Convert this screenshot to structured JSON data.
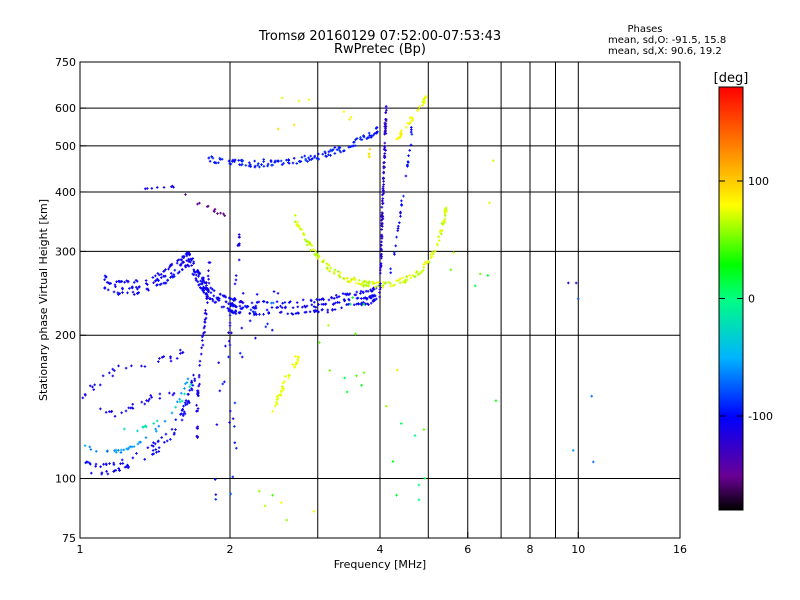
{
  "title": {
    "line1": "Tromsø 20160129 07:52:00-07:53:43",
    "line2": "RwPretec (Bp)"
  },
  "stats": {
    "heading": "Phases",
    "o_line": "mean, sd,O: -91.5, 15.8",
    "x_line": "mean, sd,X:  90.6, 19.2"
  },
  "colorbar": {
    "label": "[deg]",
    "ticks": [
      {
        "value": 100,
        "label": "100"
      },
      {
        "value": 0,
        "label": "0"
      },
      {
        "value": -100,
        "label": "-100"
      }
    ],
    "range": [
      -180,
      180
    ]
  },
  "chart_data": {
    "type": "scatter",
    "xlabel": "Frequency [MHz]",
    "ylabel": "Stationary phase Virtual Height [km]",
    "xscale": "log",
    "yscale": "log",
    "xlim": [
      1,
      16
    ],
    "ylim": [
      75,
      750
    ],
    "x_ticks": [
      {
        "value": 1,
        "label": "1"
      },
      {
        "value": 2,
        "label": "2"
      },
      {
        "value": 4,
        "label": "4"
      },
      {
        "value": 6,
        "label": "6"
      },
      {
        "value": 8,
        "label": "8"
      },
      {
        "value": 10,
        "label": "10"
      },
      {
        "value": 16,
        "label": "16"
      }
    ],
    "x_grid": [
      1,
      2,
      3,
      4,
      5,
      6,
      7,
      8,
      9,
      10,
      16
    ],
    "y_ticks": [
      {
        "value": 75,
        "label": "75"
      },
      {
        "value": 100,
        "label": "100"
      },
      {
        "value": 200,
        "label": "200"
      },
      {
        "value": 300,
        "label": "300"
      },
      {
        "value": 400,
        "label": "400"
      },
      {
        "value": 500,
        "label": "500"
      },
      {
        "value": 600,
        "label": "600"
      },
      {
        "value": 750,
        "label": "750"
      }
    ],
    "y_grid": [
      100,
      200,
      300,
      400,
      500,
      600
    ],
    "traces": [
      {
        "kind": "curve",
        "pts": [
          [
            1.12,
            260
          ],
          [
            1.2,
            252
          ],
          [
            1.3,
            252
          ],
          [
            1.4,
            258
          ],
          [
            1.5,
            268
          ],
          [
            1.6,
            282
          ],
          [
            1.65,
            290
          ],
          [
            1.7,
            272
          ],
          [
            1.75,
            258
          ],
          [
            1.8,
            248
          ],
          [
            1.9,
            238
          ],
          [
            2.0,
            232
          ],
          [
            2.1,
            229
          ],
          [
            2.3,
            228
          ],
          [
            2.6,
            229
          ],
          [
            2.9,
            230
          ],
          [
            3.2,
            233
          ],
          [
            3.5,
            238
          ],
          [
            3.8,
            240
          ],
          [
            3.95,
            245
          ]
        ],
        "phase": -105,
        "phase_spread": 12,
        "n": 150,
        "jitter": 0.012,
        "count": 3,
        "offset": 0.028
      },
      {
        "kind": "curve",
        "pts": [
          [
            1.02,
            106
          ],
          [
            1.1,
            104
          ],
          [
            1.2,
            106
          ],
          [
            1.3,
            110
          ],
          [
            1.4,
            115
          ],
          [
            1.5,
            122
          ],
          [
            1.6,
            135
          ],
          [
            1.65,
            148
          ],
          [
            1.7,
            165
          ]
        ],
        "phase": -105,
        "phase_spread": 10,
        "n": 45,
        "jitter": 0.015,
        "count": 2,
        "offset": 0.04
      },
      {
        "kind": "curve",
        "pts": [
          [
            1.02,
            118
          ],
          [
            1.1,
            114
          ],
          [
            1.2,
            114
          ],
          [
            1.3,
            118
          ],
          [
            1.4,
            125
          ],
          [
            1.5,
            135
          ],
          [
            1.6,
            150
          ],
          [
            1.65,
            165
          ]
        ],
        "phase": -60,
        "phase_spread": 20,
        "n": 35,
        "jitter": 0.015,
        "count": 1,
        "offset": 0
      },
      {
        "kind": "curve",
        "pts": [
          [
            1.2,
            125
          ],
          [
            1.35,
            128
          ],
          [
            1.5,
            135
          ],
          [
            1.6,
            145
          ],
          [
            1.68,
            160
          ]
        ],
        "phase": -20,
        "phase_spread": 10,
        "n": 15,
        "jitter": 0.02,
        "count": 1,
        "offset": 0
      },
      {
        "kind": "curve",
        "pts": [
          [
            1.02,
            150
          ],
          [
            1.1,
            160
          ],
          [
            1.2,
            170
          ],
          [
            1.35,
            175
          ],
          [
            1.5,
            180
          ],
          [
            1.65,
            185
          ]
        ],
        "phase": -110,
        "phase_spread": 10,
        "n": 30,
        "jitter": 0.03,
        "count": 1,
        "offset": 0
      },
      {
        "kind": "curve",
        "pts": [
          [
            1.05,
            140
          ],
          [
            1.2,
            138
          ],
          [
            1.35,
            145
          ],
          [
            1.5,
            150
          ],
          [
            1.65,
            160
          ]
        ],
        "phase": -110,
        "phase_spread": 10,
        "n": 25,
        "jitter": 0.03,
        "count": 1,
        "offset": 0
      },
      {
        "kind": "curve",
        "pts": [
          [
            1.72,
            120
          ],
          [
            1.72,
            145
          ],
          [
            1.75,
            180
          ],
          [
            1.78,
            210
          ],
          [
            1.8,
            240
          ],
          [
            1.82,
            290
          ]
        ],
        "phase": -110,
        "phase_spread": 10,
        "n": 30,
        "jitter": 0.015,
        "count": 2,
        "offset": 0.015
      },
      {
        "kind": "curve",
        "pts": [
          [
            2.0,
            180
          ],
          [
            2.0,
            220
          ],
          [
            2.05,
            260
          ],
          [
            2.08,
            300
          ],
          [
            2.1,
            330
          ]
        ],
        "phase": -110,
        "phase_spread": 10,
        "n": 20,
        "jitter": 0.02,
        "count": 1,
        "offset": 0
      },
      {
        "kind": "curve",
        "pts": [
          [
            1.8,
            470
          ],
          [
            2.0,
            462
          ],
          [
            2.2,
            458
          ],
          [
            2.5,
            460
          ],
          [
            2.8,
            468
          ],
          [
            3.1,
            478
          ],
          [
            3.4,
            495
          ],
          [
            3.6,
            510
          ],
          [
            3.8,
            525
          ],
          [
            3.95,
            540
          ]
        ],
        "phase": -95,
        "phase_spread": 15,
        "n": 70,
        "jitter": 0.012,
        "count": 2,
        "offset": 0.02
      },
      {
        "kind": "curve",
        "pts": [
          [
            2.7,
            352
          ],
          [
            2.85,
            315
          ],
          [
            3.0,
            292
          ],
          [
            3.2,
            274
          ],
          [
            3.45,
            262
          ],
          [
            3.7,
            257
          ],
          [
            3.9,
            255
          ],
          [
            4.2,
            256
          ],
          [
            4.5,
            262
          ],
          [
            4.8,
            272
          ],
          [
            5.0,
            285
          ],
          [
            5.2,
            310
          ],
          [
            5.35,
            340
          ],
          [
            5.45,
            375
          ]
        ],
        "phase": 70,
        "phase_spread": 22,
        "n": 90,
        "jitter": 0.01,
        "count": 2,
        "offset": 0.018
      },
      {
        "kind": "curve",
        "pts": [
          [
            4.0,
            240
          ],
          [
            4.02,
            290
          ],
          [
            4.04,
            350
          ],
          [
            4.06,
            410
          ],
          [
            4.08,
            470
          ],
          [
            4.1,
            540
          ],
          [
            4.12,
            610
          ]
        ],
        "phase": -120,
        "phase_spread": 10,
        "n": 35,
        "jitter": 0.01,
        "count": 3,
        "offset": 0.008
      },
      {
        "kind": "curve",
        "pts": [
          [
            4.2,
            270
          ],
          [
            4.3,
            310
          ],
          [
            4.4,
            360
          ],
          [
            4.5,
            430
          ],
          [
            4.6,
            500
          ],
          [
            4.65,
            560
          ]
        ],
        "phase": -100,
        "phase_spread": 20,
        "n": 30,
        "jitter": 0.015,
        "count": 1,
        "offset": 0
      },
      {
        "kind": "curve",
        "pts": [
          [
            4.3,
            510
          ],
          [
            4.5,
            545
          ],
          [
            4.7,
            580
          ],
          [
            4.85,
            610
          ],
          [
            4.95,
            630
          ]
        ],
        "phase": 80,
        "phase_spread": 15,
        "n": 20,
        "jitter": 0.012,
        "count": 2,
        "offset": 0.015
      },
      {
        "kind": "curve",
        "pts": [
          [
            2.45,
            140
          ],
          [
            2.55,
            155
          ],
          [
            2.65,
            170
          ],
          [
            2.75,
            180
          ]
        ],
        "phase": 75,
        "phase_spread": 10,
        "n": 18,
        "jitter": 0.02,
        "count": 2,
        "offset": 0.02
      },
      {
        "kind": "curve",
        "pts": [
          [
            1.35,
            405
          ],
          [
            1.45,
            408
          ],
          [
            1.55,
            410
          ]
        ],
        "phase": -110,
        "phase_spread": 8,
        "n": 8,
        "jitter": 0.01,
        "count": 1,
        "offset": 0
      },
      {
        "kind": "curve",
        "pts": [
          [
            1.6,
            395
          ],
          [
            1.75,
            375
          ],
          [
            1.9,
            360
          ],
          [
            2.0,
            355
          ]
        ],
        "phase": -150,
        "phase_spread": 10,
        "n": 12,
        "jitter": 0.02,
        "count": 1,
        "offset": 0
      },
      {
        "kind": "curve",
        "pts": [
          [
            3.8,
            440
          ],
          [
            3.8,
            470
          ],
          [
            3.82,
            500
          ]
        ],
        "phase": 95,
        "phase_spread": 10,
        "n": 6,
        "jitter": 0.01,
        "count": 1,
        "offset": 0
      },
      {
        "kind": "cloud",
        "x": [
          1.85,
          2.1
        ],
        "y": [
          90,
          200
        ],
        "phase": -100,
        "phase_spread": 40,
        "n": 20
      },
      {
        "kind": "cloud",
        "x": [
          2.1,
          2.5
        ],
        "y": [
          180,
          250
        ],
        "phase": -100,
        "phase_spread": 40,
        "n": 20
      },
      {
        "kind": "cloud",
        "x": [
          3.0,
          3.8
        ],
        "y": [
          150,
          240
        ],
        "phase": 40,
        "phase_spread": 60,
        "n": 12
      },
      {
        "kind": "cloud",
        "x": [
          4.0,
          5.0
        ],
        "y": [
          90,
          180
        ],
        "phase": 20,
        "phase_spread": 80,
        "n": 10
      },
      {
        "kind": "cloud",
        "x": [
          2.2,
          3.2
        ],
        "y": [
          80,
          95
        ],
        "phase": 60,
        "phase_spread": 40,
        "n": 6
      },
      {
        "kind": "cloud",
        "x": [
          2.5,
          3.6
        ],
        "y": [
          540,
          660
        ],
        "phase": 80,
        "phase_spread": 40,
        "n": 8
      },
      {
        "kind": "cloud",
        "x": [
          5.5,
          7.5
        ],
        "y": [
          130,
          580
        ],
        "phase": 40,
        "phase_spread": 60,
        "n": 8
      },
      {
        "kind": "cloud",
        "x": [
          9,
          12
        ],
        "y": [
          90,
          520
        ],
        "phase": -60,
        "phase_spread": 80,
        "n": 6
      }
    ]
  }
}
